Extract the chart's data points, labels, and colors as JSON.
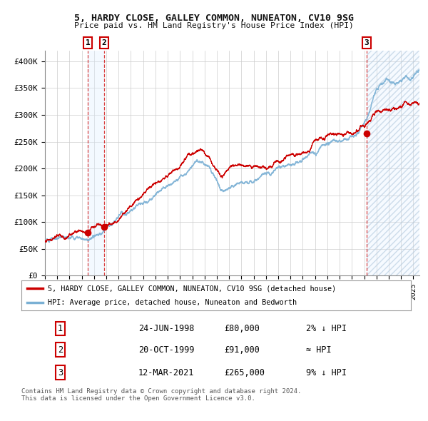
{
  "title_line1": "5, HARDY CLOSE, GALLEY COMMON, NUNEATON, CV10 9SG",
  "title_line2": "Price paid vs. HM Land Registry's House Price Index (HPI)",
  "sale_dates_num": [
    1998.479,
    1999.804,
    2021.192
  ],
  "sale_prices": [
    80000,
    91000,
    265000
  ],
  "sale_labels": [
    "1",
    "2",
    "3"
  ],
  "hpi_start_year": 1995.0,
  "hpi_end_year": 2025.5,
  "xlim": [
    1995.0,
    2025.5
  ],
  "ylim": [
    0,
    420000
  ],
  "yticks": [
    0,
    50000,
    100000,
    150000,
    200000,
    250000,
    300000,
    350000,
    400000
  ],
  "ytick_labels": [
    "£0",
    "£50K",
    "£100K",
    "£150K",
    "£200K",
    "£250K",
    "£300K",
    "£350K",
    "£400K"
  ],
  "red_color": "#cc0000",
  "blue_color": "#7ab0d4",
  "legend_label1": "5, HARDY CLOSE, GALLEY COMMON, NUNEATON, CV10 9SG (detached house)",
  "legend_label2": "HPI: Average price, detached house, Nuneaton and Bedworth",
  "table_rows": [
    [
      "1",
      "24-JUN-1998",
      "£80,000",
      "2% ↓ HPI"
    ],
    [
      "2",
      "20-OCT-1999",
      "£91,000",
      "≈ HPI"
    ],
    [
      "3",
      "12-MAR-2021",
      "£265,000",
      "9% ↓ HPI"
    ]
  ],
  "footnote": "Contains HM Land Registry data © Crown copyright and database right 2024.\nThis data is licensed under the Open Government Licence v3.0.",
  "bg_color": "#ffffff",
  "grid_color": "#cccccc",
  "shade_color": "#ddeeff",
  "hatch_color": "#b0c8dd"
}
